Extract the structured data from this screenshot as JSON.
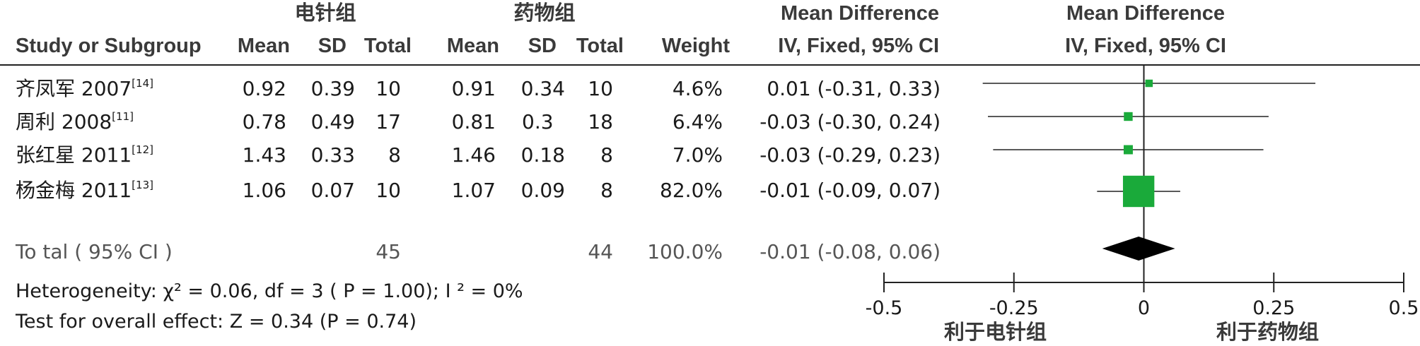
{
  "header": {
    "group1": "电针组",
    "group2": "药物组",
    "md_label": "Mean Difference",
    "md_method": "IV, Fixed, 95% CI",
    "plot_label": "Mean Difference",
    "plot_method": "IV, Fixed, 95% CI",
    "study_col": "Study or Subgroup",
    "mean1": "Mean",
    "sd1": "SD",
    "total1": "Total",
    "mean2": "Mean",
    "sd2": "SD",
    "total2": "Total",
    "weight": "Weight"
  },
  "studies": [
    {
      "name": "齐凤军 2007",
      "ref": "[14]",
      "mean1": "0.92",
      "sd1": "0.39",
      "total1": "10",
      "mean2": "0.91",
      "sd2": "0.34",
      "total2": "10",
      "weight": "4.6%",
      "ci": "0.01 (-0.31, 0.33)"
    },
    {
      "name": "周利 2008",
      "ref": "[11]",
      "mean1": "0.78",
      "sd1": "0.49",
      "total1": "17",
      "mean2": "0.81",
      "sd2": "0.3",
      "total2": "18",
      "weight": "6.4%",
      "ci": "-0.03 (-0.30, 0.24)"
    },
    {
      "name": "张红星 2011",
      "ref": "[12]",
      "mean1": "1.43",
      "sd1": "0.33",
      "total1": "8",
      "mean2": "1.46",
      "sd2": "0.18",
      "total2": "8",
      "weight": "7.0%",
      "ci": "-0.03 (-0.29, 0.23)"
    },
    {
      "name": "杨金梅 2011",
      "ref": "[13]",
      "mean1": "1.06",
      "sd1": "0.07",
      "total1": "10",
      "mean2": "1.07",
      "sd2": "0.09",
      "total2": "8",
      "weight": "82.0%",
      "ci": "-0.01 (-0.09, 0.07)"
    }
  ],
  "total": {
    "label": "To tal ( 95% CI )",
    "total1": "45",
    "total2": "44",
    "weight": "100.0%",
    "ci": "-0.01 (-0.08, 0.06)"
  },
  "footer": {
    "heterogeneity": "Heterogeneity:  χ² = 0.06, df = 3 (  P = 1.00); I ² = 0%",
    "overall": "Test for overall effect: Z = 0.34 (P = 0.74)"
  },
  "axis": {
    "favours_left": "利于电针组",
    "favours_right": "利于药物组"
  },
  "chart_data": {
    "type": "forest",
    "series": [
      {
        "study": "齐凤军 2007",
        "estimate": 0.01,
        "lower": -0.31,
        "upper": 0.33,
        "weight": 4.6
      },
      {
        "study": "周利 2008",
        "estimate": -0.03,
        "lower": -0.3,
        "upper": 0.24,
        "weight": 6.4
      },
      {
        "study": "张红星 2011",
        "estimate": -0.03,
        "lower": -0.29,
        "upper": 0.23,
        "weight": 7.0
      },
      {
        "study": "杨金梅 2011",
        "estimate": -0.01,
        "lower": -0.09,
        "upper": 0.07,
        "weight": 82.0
      }
    ],
    "pooled": {
      "estimate": -0.01,
      "lower": -0.08,
      "upper": 0.06
    },
    "xlim": [
      -0.5,
      0.5
    ],
    "ticks": [
      -0.5,
      -0.25,
      0,
      0.25,
      0.5
    ],
    "tick_labels": [
      "-0.5",
      "-0.25",
      "0",
      "0.25",
      "0.5"
    ],
    "colors": {
      "box": "#1aaa3a",
      "diamond": "#000000",
      "line": "#222222"
    }
  }
}
